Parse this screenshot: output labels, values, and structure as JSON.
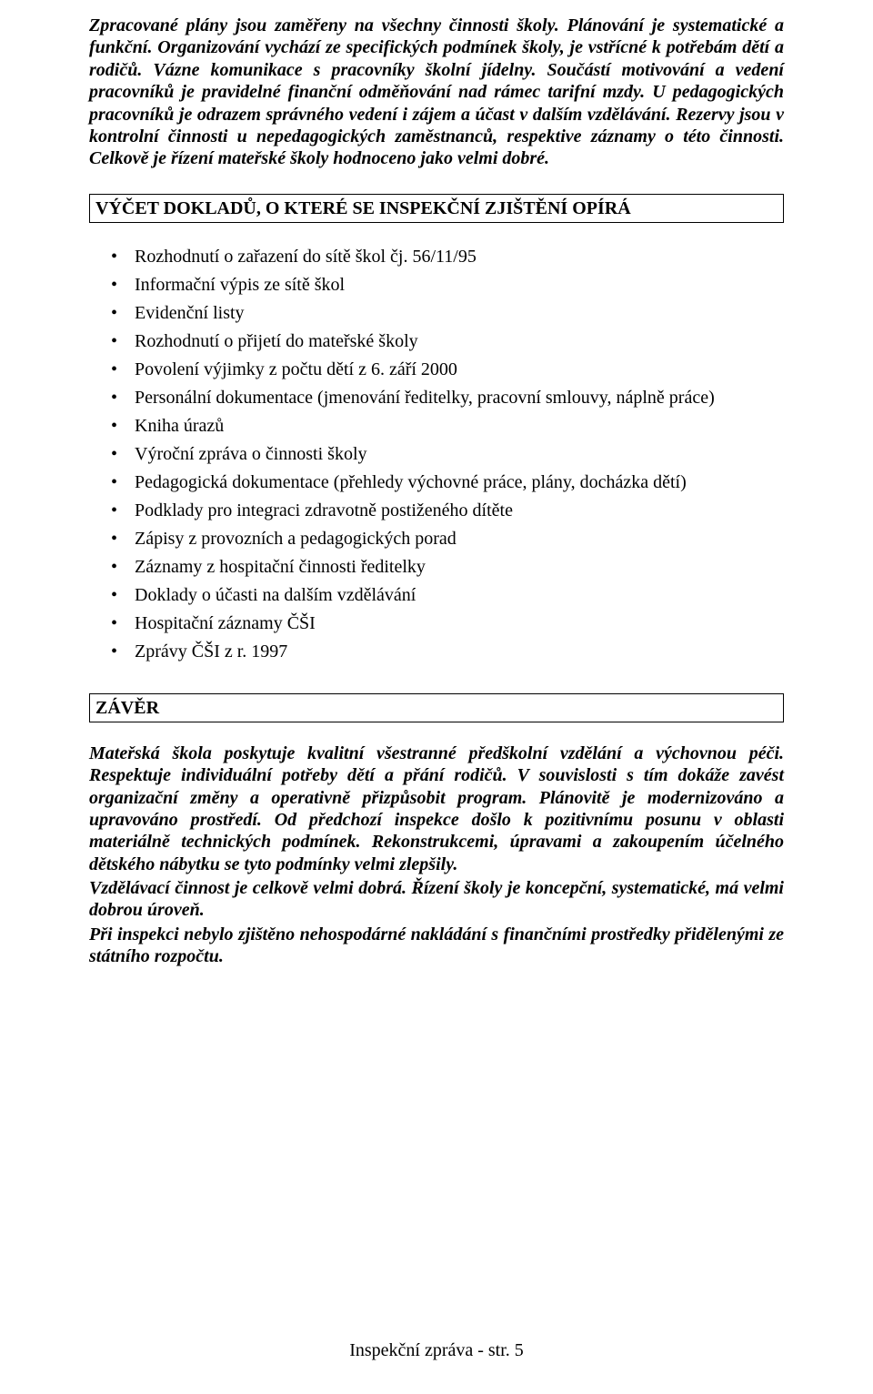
{
  "intro_paragraph": "Zpracované plány jsou zaměřeny na všechny činnosti školy. Plánování je systematické a funkční. Organizování vychází ze specifických podmínek školy, je vstřícné k potřebám dětí a rodičů. Vázne komunikace s pracovníky školní jídelny. Součástí motivování a vedení pracovníků je pravidelné finanční odměňování nad rámec tarifní mzdy. U pedagogických pracovníků je odrazem správného vedení i zájem a účast v dalším vzdělávání. Rezervy jsou v kontrolní činnosti u nepedagogických zaměstnanců, respektive záznamy o této činnosti. Celkově je řízení mateřské školy hodnoceno jako velmi dobré.",
  "section_vycet": {
    "title": "VÝČET DOKLADŮ, O KTERÉ SE INSPEKČNÍ ZJIŠTĚNÍ OPÍRÁ",
    "items": [
      "Rozhodnutí o zařazení do sítě škol čj. 56/11/95",
      "Informační výpis ze sítě škol",
      "Evidenční listy",
      "Rozhodnutí o přijetí do mateřské školy",
      "Povolení výjimky z počtu dětí z 6. září 2000",
      "Personální dokumentace (jmenování ředitelky, pracovní smlouvy, náplně práce)",
      "Kniha úrazů",
      "Výroční zpráva o činnosti školy",
      "Pedagogická dokumentace (přehledy výchovné práce, plány, docházka dětí)",
      "Podklady pro integraci zdravotně postiženého dítěte",
      "Zápisy z provozních a pedagogických porad",
      "Záznamy z hospitační činnosti ředitelky",
      "Doklady o účasti na dalším vzdělávání",
      "Hospitační záznamy ČŠI",
      "Zprávy ČŠI z r. 1997"
    ]
  },
  "section_zaver": {
    "title": "ZÁVĚR",
    "paragraphs": [
      "Mateřská škola poskytuje kvalitní všestranné předškolní vzdělání a výchovnou péči. Respektuje individuální potřeby dětí a přání rodičů. V souvislosti s tím dokáže zavést organizační změny a operativně přizpůsobit program. Plánovitě je modernizováno a upravováno prostředí. Od předchozí inspekce došlo k pozitivnímu posunu v oblasti materiálně technických podmínek. Rekonstrukcemi, úpravami a zakoupením účelného dětského nábytku se tyto podmínky velmi zlepšily.",
      "Vzdělávací činnost je celkově velmi dobrá. Řízení školy je koncepční, systematické, má velmi dobrou úroveň.",
      "Při inspekci nebylo zjištěno nehospodárné nakládání s finančními prostředky přidělenými ze státního rozpočtu."
    ]
  },
  "footer": "Inspekční zpráva - str. 5"
}
